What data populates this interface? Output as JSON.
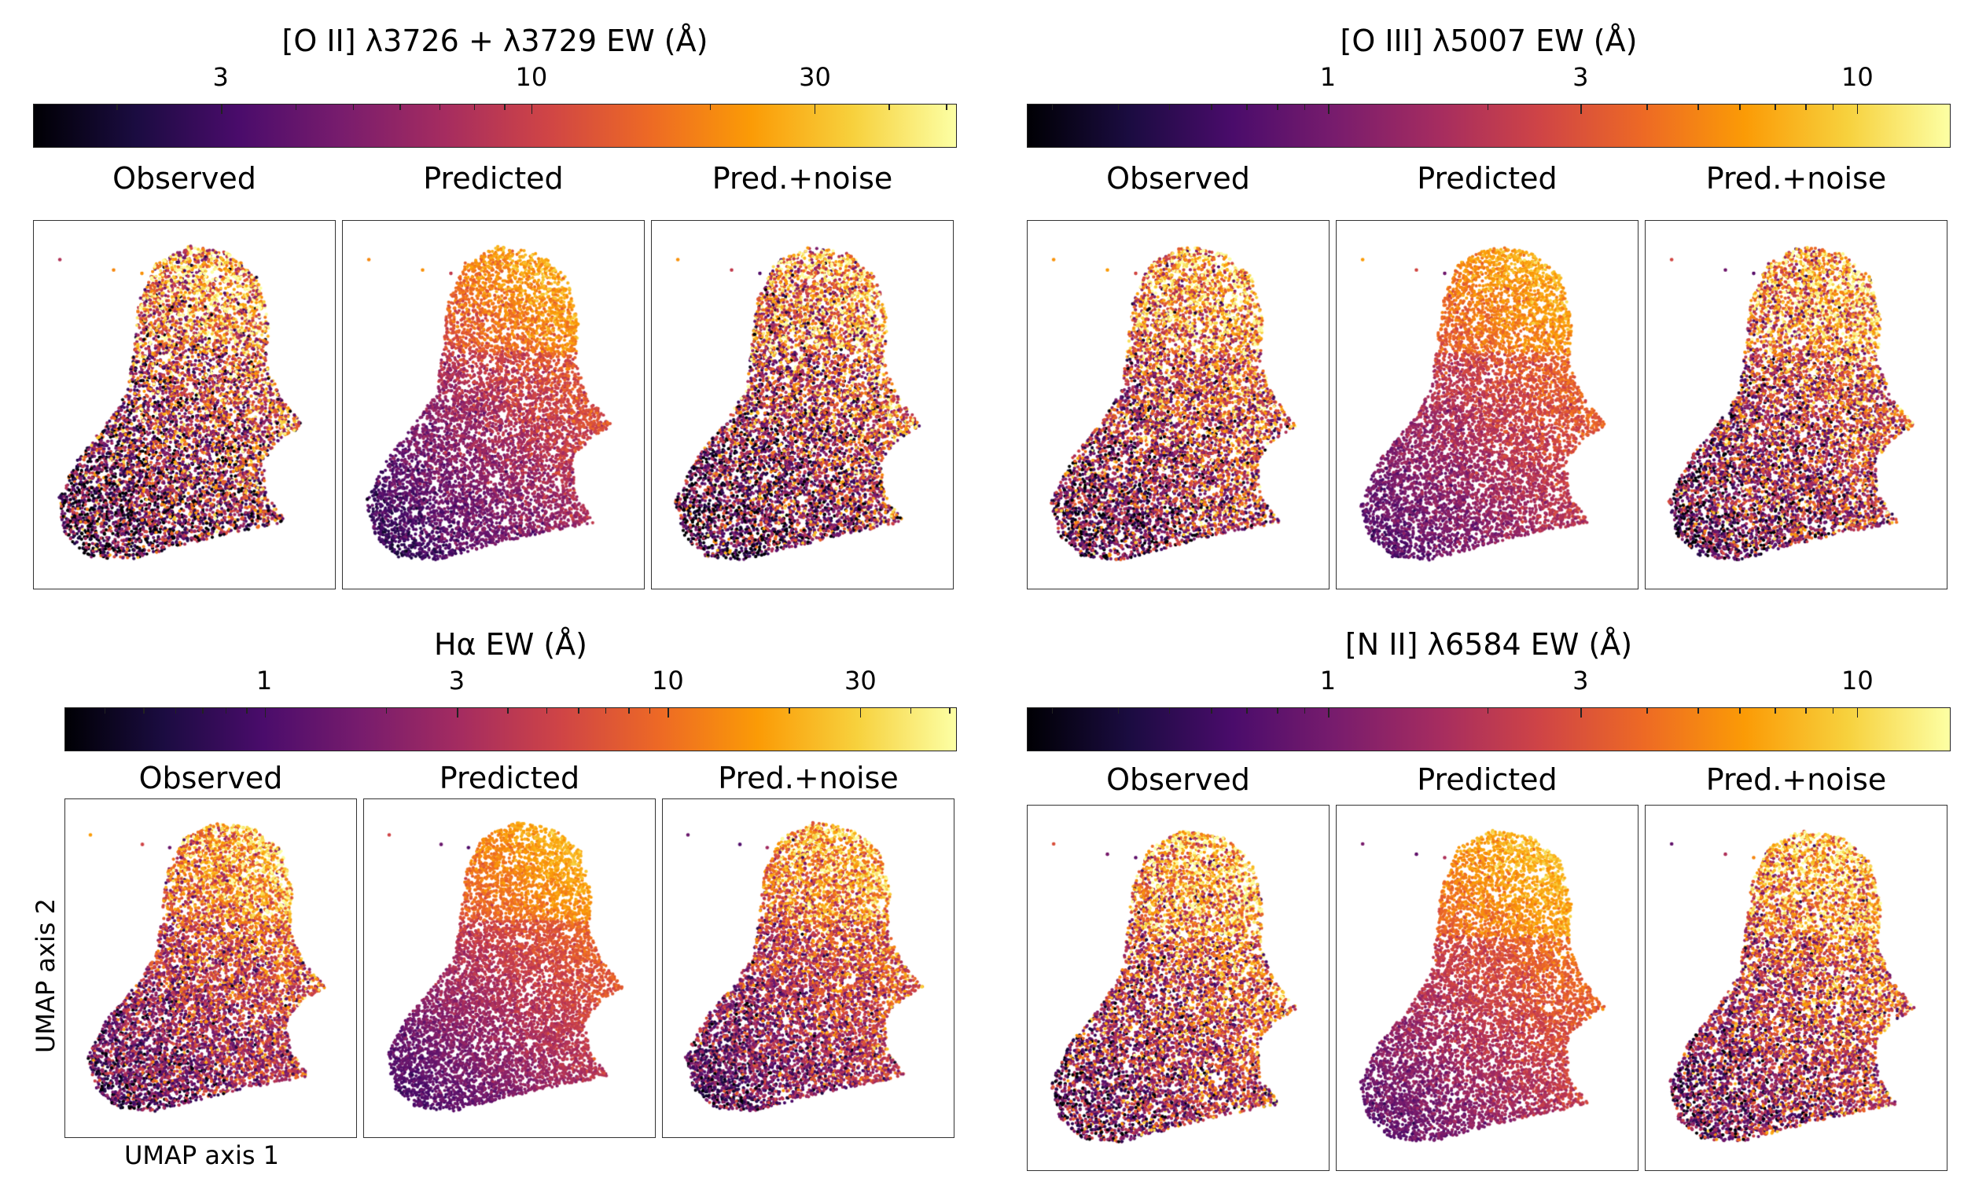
{
  "colormap": "inferno",
  "colormap_stops": [
    "#000004",
    "#1b0c41",
    "#4a0c6b",
    "#781c6d",
    "#a52c60",
    "#cf4446",
    "#ed6925",
    "#fb9b06",
    "#f7d13d",
    "#fcffa4"
  ],
  "figure": {
    "xlabel": "UMAP axis 1",
    "ylabel": "UMAP axis 2"
  },
  "chart_data": [
    {
      "type": "scatter",
      "title": "[O II] λ3726 + λ3729 EW (Å)",
      "colorbar": {
        "scale": "log",
        "min": 1.45,
        "max": 52,
        "ticks": [
          3,
          10,
          30
        ],
        "tick_labels": [
          "3",
          "10",
          "30"
        ]
      },
      "panels": [
        "Observed",
        "Predicted",
        "Pred.+noise"
      ],
      "color_model": {
        "low": 2.0,
        "high": 32,
        "scatter_dex": 0.45
      }
    },
    {
      "type": "scatter",
      "title": "[O III] λ5007 EW (Å)",
      "colorbar": {
        "scale": "log",
        "min": 0.27,
        "max": 15,
        "ticks": [
          1,
          3,
          10
        ],
        "tick_labels": [
          "1",
          "3",
          "10"
        ]
      },
      "panels": [
        "Observed",
        "Predicted",
        "Pred.+noise"
      ],
      "color_model": {
        "low": 0.55,
        "high": 9,
        "scatter_dex": 0.45
      }
    },
    {
      "type": "scatter",
      "title": "Hα EW (Å)",
      "colorbar": {
        "scale": "log",
        "min": 0.32,
        "max": 52,
        "ticks": [
          1,
          3,
          10,
          30
        ],
        "tick_labels": [
          "1",
          "3",
          "10",
          "30"
        ]
      },
      "panels": [
        "Observed",
        "Predicted",
        "Pred.+noise"
      ],
      "color_model": {
        "low": 0.7,
        "high": 28,
        "scatter_dex": 0.4
      }
    },
    {
      "type": "scatter",
      "title": "[N II] λ6584 EW (Å)",
      "colorbar": {
        "scale": "log",
        "min": 0.27,
        "max": 15,
        "ticks": [
          1,
          3,
          10
        ],
        "tick_labels": [
          "1",
          "3",
          "10"
        ]
      },
      "panels": [
        "Observed",
        "Predicted",
        "Pred.+noise"
      ],
      "color_model": {
        "low": 0.6,
        "high": 10,
        "scatter_dex": 0.4
      }
    }
  ]
}
